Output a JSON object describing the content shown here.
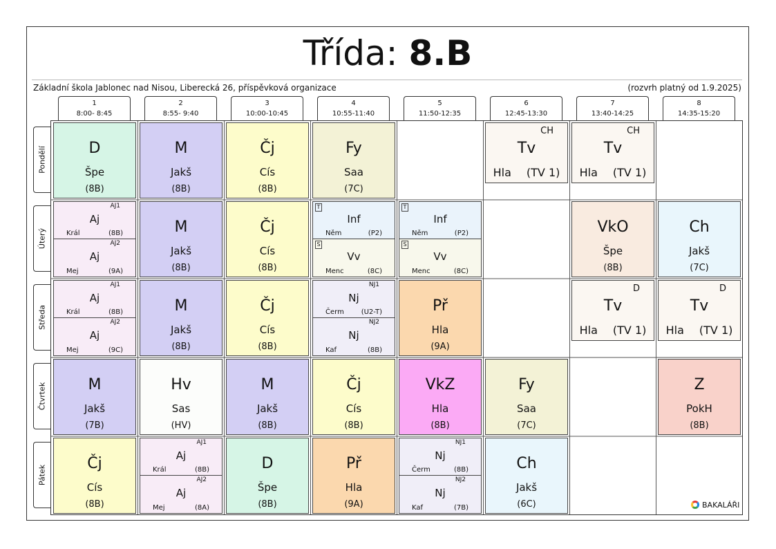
{
  "header": {
    "title_prefix": "Třída:",
    "title_class": "8.B",
    "school": "Základní škola Jablonec nad Nisou, Liberecká 26, příspěvková organizace",
    "validity": "(rozvrh platný od 1.9.2025)"
  },
  "periods": [
    {
      "num": "1",
      "time": "8:00- 8:45"
    },
    {
      "num": "2",
      "time": "8:55- 9:40"
    },
    {
      "num": "3",
      "time": "10:00-10:45"
    },
    {
      "num": "4",
      "time": "10:55-11:40"
    },
    {
      "num": "5",
      "time": "11:50-12:35"
    },
    {
      "num": "6",
      "time": "12:45-13:30"
    },
    {
      "num": "7",
      "time": "13:40-14:25"
    },
    {
      "num": "8",
      "time": "14:35-15:20"
    }
  ],
  "days": [
    "Pondělí",
    "Úterý",
    "Středa",
    "Čtvrtek",
    "Pátek"
  ],
  "colors": {
    "D": "#d6f5e6",
    "M": "#d3cff4",
    "Cj": "#fdfccb",
    "Fy": "#f3f2d6",
    "Tv": "#fbf7f2",
    "Aj": "#f8ecf7",
    "Inf": "#eaf3fb",
    "Vv": "#f8f8ec",
    "Nj": "#f0eef8",
    "Pr": "#fbd8ae",
    "VkO": "#f9ebe0",
    "Ch": "#e9f6fc",
    "Hv": "#fcfdfb",
    "VkZ": "#fbaaf5",
    "Z": "#f9d2ca"
  },
  "lessons": {
    "mon": [
      {
        "subject": "D",
        "teacher": "Špe",
        "room": "(8B)"
      },
      {
        "subject": "M",
        "teacher": "Jakš",
        "room": "(8B)"
      },
      {
        "subject": "Čj",
        "teacher": "Cís",
        "room": "(8B)"
      },
      {
        "subject": "Fy",
        "teacher": "Saa",
        "room": "(7C)"
      },
      {
        "subject": "Tv",
        "group": "CH",
        "teacher": "Hla",
        "room": "(TV 1)"
      },
      {
        "subject": "Tv",
        "group": "CH",
        "teacher": "Hla",
        "room": "(TV 1)"
      }
    ],
    "tue": [
      {
        "top": {
          "group": "AJ1",
          "subject": "Aj",
          "teacher": "Král",
          "room": "(8B)"
        },
        "bottom": {
          "group": "AJ2",
          "subject": "Aj",
          "teacher": "Mej",
          "room": "(9A)"
        }
      },
      {
        "subject": "M",
        "teacher": "Jakš",
        "room": "(8B)"
      },
      {
        "subject": "Čj",
        "teacher": "Cís",
        "room": "(8B)"
      },
      {
        "top": {
          "flag": "T",
          "subject": "Inf",
          "teacher": "Něm",
          "room": "(P2)"
        },
        "bottom": {
          "flag": "S",
          "subject": "Vv",
          "teacher": "Menc",
          "room": "(8C)"
        }
      },
      {
        "top": {
          "flag": "T",
          "subject": "Inf",
          "teacher": "Něm",
          "room": "(P2)"
        },
        "bottom": {
          "flag": "S",
          "subject": "Vv",
          "teacher": "Menc",
          "room": "(8C)"
        }
      },
      {
        "subject": "VkO",
        "teacher": "Špe",
        "room": "(8B)"
      },
      {
        "subject": "Ch",
        "teacher": "Jakš",
        "room": "(7C)"
      }
    ],
    "wed": [
      {
        "top": {
          "group": "AJ1",
          "subject": "Aj",
          "teacher": "Král",
          "room": "(8B)"
        },
        "bottom": {
          "group": "AJ2",
          "subject": "Aj",
          "teacher": "Mej",
          "room": "(9C)"
        }
      },
      {
        "subject": "M",
        "teacher": "Jakš",
        "room": "(8B)"
      },
      {
        "subject": "Čj",
        "teacher": "Cís",
        "room": "(8B)"
      },
      {
        "top": {
          "group": "NJ1",
          "subject": "Nj",
          "teacher": "Čerm",
          "room": "(U2-T)"
        },
        "bottom": {
          "group": "NJ2",
          "subject": "Nj",
          "teacher": "Kaf",
          "room": "(8B)"
        }
      },
      {
        "subject": "Př",
        "teacher": "Hla",
        "room": "(9A)"
      },
      {
        "subject": "Tv",
        "group": "D",
        "teacher": "Hla",
        "room": "(TV 1)"
      },
      {
        "subject": "Tv",
        "group": "D",
        "teacher": "Hla",
        "room": "(TV 1)"
      }
    ],
    "thu": [
      {
        "subject": "M",
        "teacher": "Jakš",
        "room": "(7B)"
      },
      {
        "subject": "Hv",
        "teacher": "Sas",
        "room": "(HV)"
      },
      {
        "subject": "M",
        "teacher": "Jakš",
        "room": "(8B)"
      },
      {
        "subject": "Čj",
        "teacher": "Cís",
        "room": "(8B)"
      },
      {
        "subject": "VkZ",
        "teacher": "Hla",
        "room": "(8B)"
      },
      {
        "subject": "Fy",
        "teacher": "Saa",
        "room": "(7C)"
      },
      {
        "subject": "Z",
        "teacher": "PokH",
        "room": "(8B)"
      }
    ],
    "fri": [
      {
        "subject": "Čj",
        "teacher": "Cís",
        "room": "(8B)"
      },
      {
        "top": {
          "group": "AJ1",
          "subject": "Aj",
          "teacher": "Král",
          "room": "(8B)"
        },
        "bottom": {
          "group": "AJ2",
          "subject": "Aj",
          "teacher": "Mej",
          "room": "(8A)"
        }
      },
      {
        "subject": "D",
        "teacher": "Špe",
        "room": "(8B)"
      },
      {
        "subject": "Př",
        "teacher": "Hla",
        "room": "(9A)"
      },
      {
        "top": {
          "group": "NJ1",
          "subject": "Nj",
          "teacher": "Čerm",
          "room": "(8B)"
        },
        "bottom": {
          "group": "NJ2",
          "subject": "Nj",
          "teacher": "Kaf",
          "room": "(7B)"
        }
      },
      {
        "subject": "Ch",
        "teacher": "Jakš",
        "room": "(6C)"
      }
    ]
  },
  "logo": {
    "text": "BAKALÁŘI"
  }
}
